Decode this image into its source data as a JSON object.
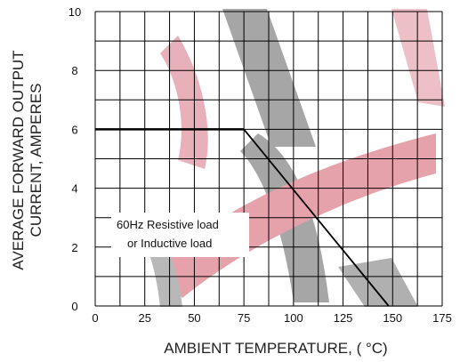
{
  "chart_data": {
    "type": "line",
    "xlabel": "AMBIENT TEMPERATURE, ( °C)",
    "ylabel_lines": [
      "AVERAGE FORWARD OUTPUT",
      "CURRENT, AMPERES"
    ],
    "xlim": [
      0,
      175
    ],
    "ylim": [
      0,
      10
    ],
    "x_ticks": [
      0,
      25,
      50,
      75,
      100,
      125,
      150,
      175
    ],
    "y_ticks": [
      0,
      2,
      4,
      6,
      8,
      10
    ],
    "grid": true,
    "series": [
      {
        "x": [
          0,
          75,
          148
        ],
        "y": [
          6,
          6,
          0
        ]
      }
    ],
    "annotation_lines": [
      "60Hz  Resistive load",
      "or Inductive load"
    ]
  },
  "colors": {
    "grid": "#000000",
    "curve": "#000000",
    "watermark_red": "#e8a0aa",
    "watermark_gray": "#a0a0a0"
  }
}
